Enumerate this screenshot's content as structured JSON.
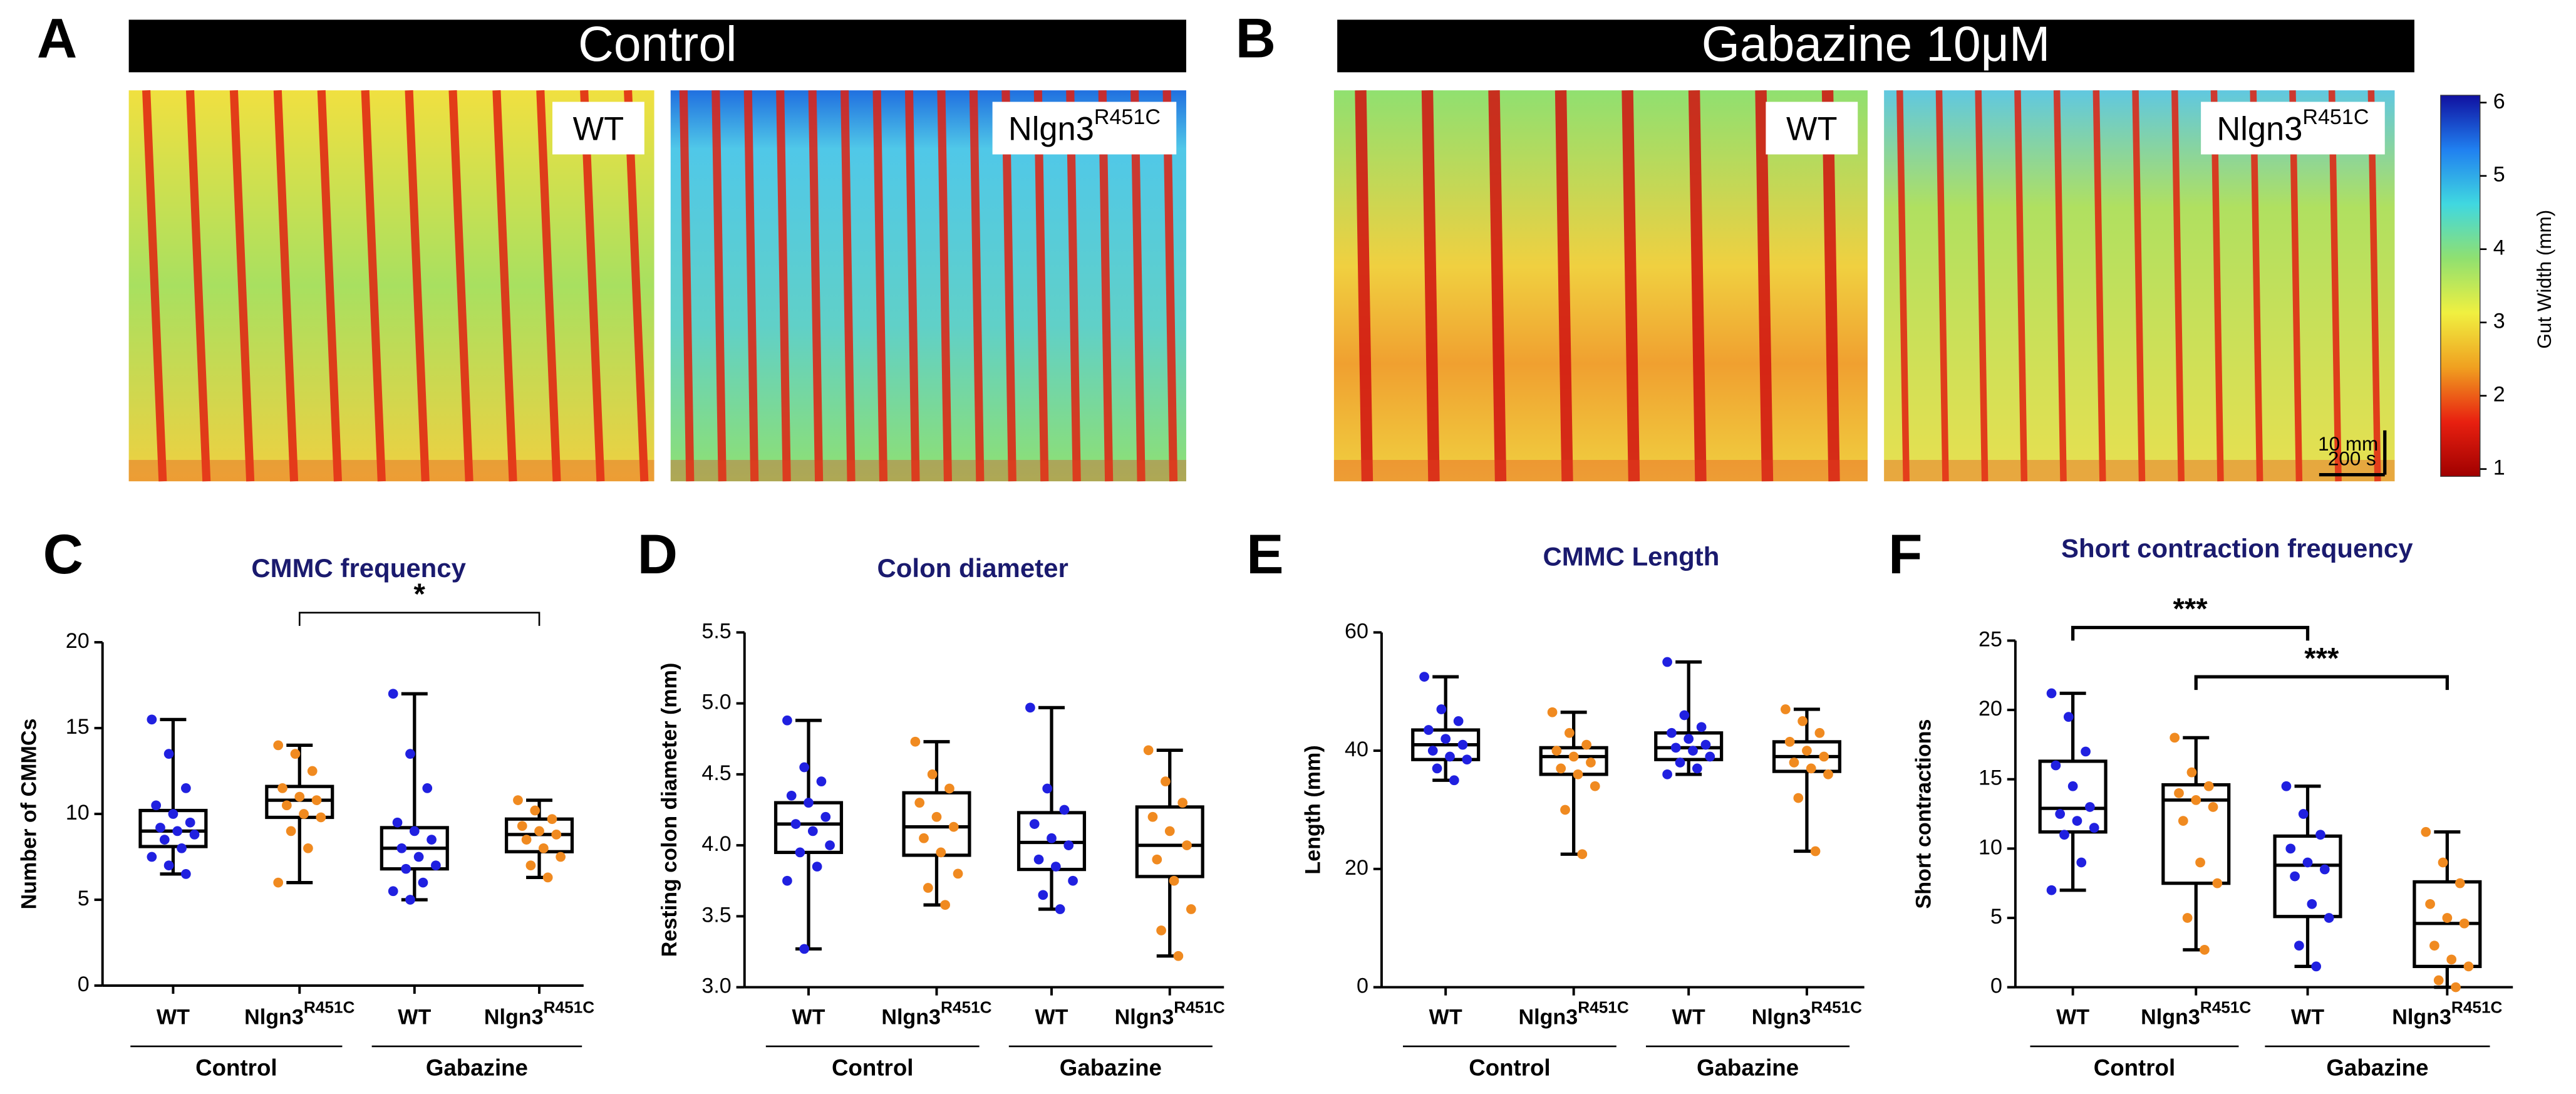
{
  "heatmaps": {
    "panels": [
      {
        "letter": "A",
        "title": "Control",
        "maps": [
          {
            "label": "WT"
          },
          {
            "label": "Nlgn3",
            "sup": "R451C"
          }
        ]
      },
      {
        "letter": "B",
        "title": "Gabazine 10μM",
        "maps": [
          {
            "label": "WT"
          },
          {
            "label": "Nlgn3",
            "sup": "R451C"
          }
        ]
      }
    ],
    "scalebar": {
      "vertical": "10 mm",
      "horizontal": "200 s"
    }
  },
  "chart_data": [
    {
      "type": "colorbar",
      "label": "Gut Width (mm)",
      "ylim": [
        0.9,
        6.1
      ],
      "yticks": [
        1,
        2,
        3,
        4,
        5,
        6
      ],
      "colors": [
        "#a00000",
        "#e82010",
        "#f0a020",
        "#f0f040",
        "#90e070",
        "#40d8e0",
        "#2080f0",
        "#1010a0"
      ]
    },
    {
      "type": "box",
      "letter": "C",
      "title": "CMMC frequency",
      "ylabel": "Number of CMMCs",
      "ylim": [
        0,
        20
      ],
      "yticks": [
        0,
        5,
        10,
        15,
        20
      ],
      "categories": [
        "WT",
        "Nlgn3",
        "WT",
        "Nlgn3"
      ],
      "category_superscripts": [
        null,
        "R451C",
        null,
        "R451C"
      ],
      "groups": [
        "Control",
        "Gabazine"
      ],
      "colors": [
        "#2020e0",
        "#f08a20",
        "#2020e0",
        "#f08a20"
      ],
      "boxes": [
        {
          "min": 6.5,
          "q1": 8.1,
          "median": 9,
          "q3": 10.2,
          "max": 15.5,
          "points": [
            15.5,
            13.5,
            11.5,
            10.5,
            10,
            9.5,
            9.2,
            9,
            8.8,
            8.5,
            8,
            7.5,
            7,
            6.5
          ]
        },
        {
          "min": 6,
          "q1": 9.8,
          "median": 10.8,
          "q3": 11.6,
          "max": 14,
          "points": [
            14,
            13.5,
            12.5,
            11.5,
            11,
            10.8,
            10.5,
            10,
            9.8,
            9,
            8,
            6
          ]
        },
        {
          "min": 5,
          "q1": 6.8,
          "median": 8,
          "q3": 9.2,
          "max": 17,
          "points": [
            17,
            13.5,
            11.5,
            9.5,
            9,
            8.5,
            8,
            7.5,
            7,
            6.8,
            6,
            5.5,
            5
          ]
        },
        {
          "min": 6.3,
          "q1": 7.8,
          "median": 8.8,
          "q3": 9.7,
          "max": 10.8,
          "points": [
            10.8,
            10.2,
            9.7,
            9.3,
            9,
            8.8,
            8.5,
            8,
            7.5,
            7,
            6.3
          ]
        }
      ],
      "annotations": [
        {
          "text": "*",
          "from": 1,
          "to": 3
        }
      ]
    },
    {
      "type": "box",
      "letter": "D",
      "title": "Colon diameter",
      "ylabel": "Resting colon diameter (mm)",
      "ylim": [
        3,
        5.5
      ],
      "yticks": [
        {
          "value": 3,
          "label": "3.0"
        },
        {
          "value": 3.5,
          "label": "3.5"
        },
        {
          "value": 4,
          "label": "4.0"
        },
        {
          "value": 4.5,
          "label": "4.5"
        },
        {
          "value": 5,
          "label": "5.0"
        },
        {
          "value": 5.5,
          "label": "5.5"
        }
      ],
      "categories": [
        "WT",
        "Nlgn3",
        "WT",
        "Nlgn3"
      ],
      "category_superscripts": [
        null,
        "R451C",
        null,
        "R451C"
      ],
      "groups": [
        "Control",
        "Gabazine"
      ],
      "colors": [
        "#2020e0",
        "#f08a20",
        "#2020e0",
        "#f08a20"
      ],
      "boxes": [
        {
          "min": 3.27,
          "q1": 3.95,
          "median": 4.15,
          "q3": 4.3,
          "max": 4.88,
          "points": [
            4.88,
            4.55,
            4.45,
            4.35,
            4.3,
            4.2,
            4.15,
            4.1,
            4.0,
            3.95,
            3.85,
            3.75,
            3.27
          ]
        },
        {
          "min": 3.58,
          "q1": 3.93,
          "median": 4.13,
          "q3": 4.37,
          "max": 4.73,
          "points": [
            4.73,
            4.5,
            4.4,
            4.3,
            4.2,
            4.13,
            4.05,
            3.95,
            3.8,
            3.7,
            3.58
          ]
        },
        {
          "min": 3.55,
          "q1": 3.83,
          "median": 4.02,
          "q3": 4.23,
          "max": 4.97,
          "points": [
            4.97,
            4.4,
            4.25,
            4.15,
            4.05,
            4.0,
            3.9,
            3.85,
            3.75,
            3.65,
            3.55
          ]
        },
        {
          "min": 3.22,
          "q1": 3.78,
          "median": 4.0,
          "q3": 4.27,
          "max": 4.67,
          "points": [
            4.67,
            4.45,
            4.3,
            4.2,
            4.1,
            4.0,
            3.9,
            3.75,
            3.55,
            3.4,
            3.22
          ]
        }
      ],
      "annotations": []
    },
    {
      "type": "box",
      "letter": "E",
      "title": "CMMC Length",
      "ylabel": "Length (mm)",
      "ylim": [
        0,
        60
      ],
      "yticks": [
        0,
        20,
        40,
        60
      ],
      "categories": [
        "WT",
        "Nlgn3",
        "WT",
        "Nlgn3"
      ],
      "category_superscripts": [
        null,
        "R451C",
        null,
        "R451C"
      ],
      "groups": [
        "Control",
        "Gabazine"
      ],
      "colors": [
        "#2020e0",
        "#f08a20",
        "#2020e0",
        "#f08a20"
      ],
      "boxes": [
        {
          "min": 35,
          "q1": 38.5,
          "median": 41,
          "q3": 43.5,
          "max": 52.5,
          "points": [
            52.5,
            47,
            45,
            43.5,
            42,
            41,
            40,
            39,
            38.5,
            37,
            35
          ]
        },
        {
          "min": 22.5,
          "q1": 36,
          "median": 39,
          "q3": 40.5,
          "max": 46.5,
          "points": [
            46.5,
            43,
            41,
            40,
            39,
            38,
            37,
            36,
            34,
            30,
            22.5
          ]
        },
        {
          "min": 36,
          "q1": 38.5,
          "median": 40.5,
          "q3": 43,
          "max": 55,
          "points": [
            55,
            46,
            44,
            43,
            42,
            41,
            40.5,
            40,
            39,
            38,
            37,
            36
          ]
        },
        {
          "min": 23,
          "q1": 36.5,
          "median": 39,
          "q3": 41.5,
          "max": 47,
          "points": [
            47,
            45,
            43,
            41.5,
            40,
            39,
            38,
            37,
            36,
            32,
            23
          ]
        }
      ],
      "annotations": []
    },
    {
      "type": "box",
      "letter": "F",
      "title": "Short contraction frequency",
      "ylabel": "Short contractions",
      "ylim": [
        0,
        25
      ],
      "yticks": [
        0,
        5,
        10,
        15,
        20,
        25
      ],
      "categories": [
        "WT",
        "Nlgn3",
        "WT",
        "Nlgn3"
      ],
      "category_superscripts": [
        null,
        "R451C",
        null,
        "R451C"
      ],
      "groups": [
        "Control",
        "Gabazine"
      ],
      "colors": [
        "#2020e0",
        "#f08a20",
        "#2020e0",
        "#f08a20"
      ],
      "boxes": [
        {
          "min": 7,
          "q1": 11.2,
          "median": 12.9,
          "q3": 16.3,
          "max": 21.2,
          "points": [
            21.2,
            19.5,
            17,
            16,
            14.5,
            13,
            12.5,
            12,
            11.5,
            11,
            9,
            7
          ]
        },
        {
          "min": 2.7,
          "q1": 7.5,
          "median": 13.5,
          "q3": 14.6,
          "max": 18,
          "points": [
            18,
            15.5,
            14.5,
            14,
            13.5,
            13,
            12,
            9,
            7.5,
            5,
            2.7
          ]
        },
        {
          "min": 1.5,
          "q1": 5.1,
          "median": 8.8,
          "q3": 10.9,
          "max": 14.5,
          "points": [
            14.5,
            12.5,
            11,
            10,
            9,
            8.5,
            8,
            6,
            5,
            3,
            1.5
          ]
        },
        {
          "min": 0,
          "q1": 1.5,
          "median": 4.6,
          "q3": 7.6,
          "max": 11.2,
          "points": [
            11.2,
            9,
            7.5,
            6,
            5,
            4.6,
            3,
            2,
            1.5,
            0.5,
            0
          ]
        }
      ],
      "annotations": [
        {
          "text": "***",
          "from": 0,
          "to": 2
        },
        {
          "text": "***",
          "from": 1,
          "to": 3
        }
      ]
    }
  ]
}
